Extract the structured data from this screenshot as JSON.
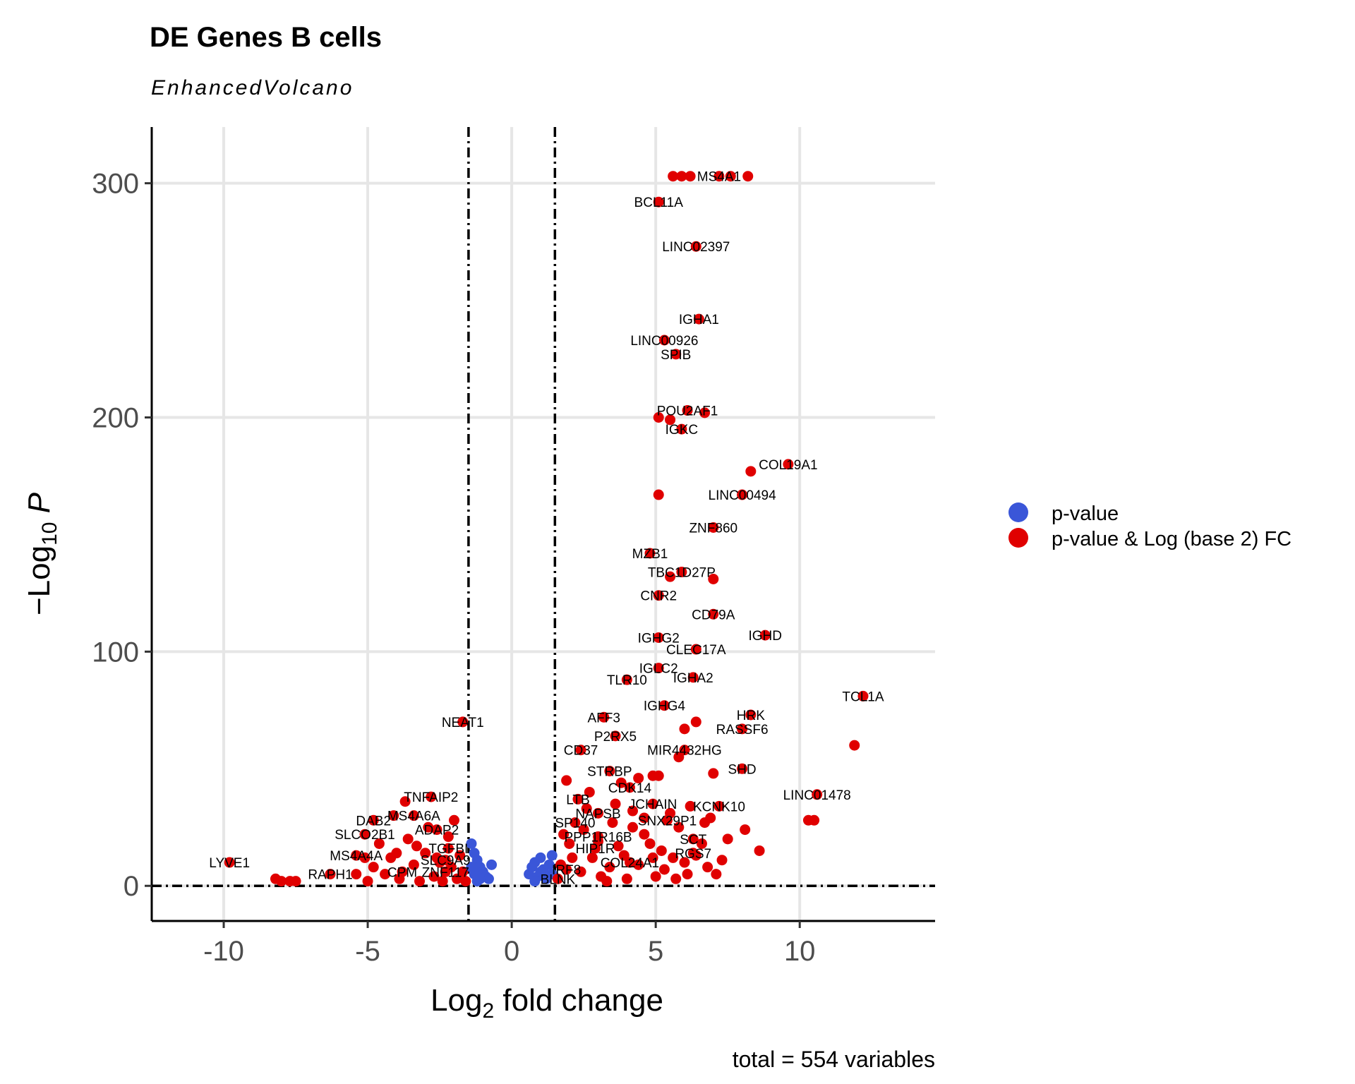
{
  "title": "DE Genes B cells",
  "subtitle": "EnhancedVolcano",
  "caption": "total = 554 variables",
  "colors": {
    "ns": "#3a56d8",
    "sig": "#e00000",
    "grid": "#e6e6e6"
  },
  "legend": [
    {
      "label": "p-value",
      "color": "#3a56d8"
    },
    {
      "label": "p-value & Log (base 2) FC",
      "color": "#e00000"
    }
  ],
  "chart_data": {
    "type": "scatter",
    "title": "DE Genes B cells",
    "subtitle": "EnhancedVolcano",
    "xlabel": "Log2 fold change",
    "ylabel": "-Log10 P",
    "xlim": [
      -12.5,
      14.7
    ],
    "ylim": [
      -15,
      324
    ],
    "xticks": [
      -10,
      -5,
      0,
      5,
      10
    ],
    "xtick_labels": [
      "-10",
      "-5",
      "0",
      "5",
      "10"
    ],
    "yticks": [
      0,
      100,
      200,
      300
    ],
    "ytick_labels": [
      "0",
      "100",
      "200",
      "300"
    ],
    "grid": true,
    "legend_position": "right",
    "fc_cutoff": 1.5,
    "p_cutoff_line": 0,
    "labeled_points": [
      {
        "gene": "MS4A1",
        "x": 7.2,
        "y": 303,
        "group": "sig"
      },
      {
        "gene": "BCL11A",
        "x": 5.1,
        "y": 292,
        "group": "sig"
      },
      {
        "gene": "LINC02397",
        "x": 6.4,
        "y": 273,
        "group": "sig"
      },
      {
        "gene": "IGHA1",
        "x": 6.5,
        "y": 242,
        "group": "sig"
      },
      {
        "gene": "LINC00926",
        "x": 5.3,
        "y": 233,
        "group": "sig"
      },
      {
        "gene": "SPIB",
        "x": 5.7,
        "y": 227,
        "group": "sig"
      },
      {
        "gene": "POU2AF1",
        "x": 6.1,
        "y": 203,
        "group": "sig"
      },
      {
        "gene": "IGKC",
        "x": 5.9,
        "y": 195,
        "group": "sig"
      },
      {
        "gene": "COL19A1",
        "x": 9.6,
        "y": 180,
        "group": "sig"
      },
      {
        "gene": "LINC00494",
        "x": 8.0,
        "y": 167,
        "group": "sig"
      },
      {
        "gene": "ZNF860",
        "x": 7.0,
        "y": 153,
        "group": "sig"
      },
      {
        "gene": "MZB1",
        "x": 4.8,
        "y": 142,
        "group": "sig"
      },
      {
        "gene": "TBC1D27P",
        "x": 5.9,
        "y": 134,
        "group": "sig"
      },
      {
        "gene": "CNR2",
        "x": 5.1,
        "y": 124,
        "group": "sig"
      },
      {
        "gene": "CD79A",
        "x": 7.0,
        "y": 116,
        "group": "sig"
      },
      {
        "gene": "IGHD",
        "x": 8.8,
        "y": 107,
        "group": "sig"
      },
      {
        "gene": "IGHG2",
        "x": 5.1,
        "y": 106,
        "group": "sig"
      },
      {
        "gene": "CLEC17A",
        "x": 6.4,
        "y": 101,
        "group": "sig"
      },
      {
        "gene": "IGLC2",
        "x": 5.1,
        "y": 93,
        "group": "sig"
      },
      {
        "gene": "TLR10",
        "x": 4.0,
        "y": 88,
        "group": "sig"
      },
      {
        "gene": "IGHA2",
        "x": 6.3,
        "y": 89,
        "group": "sig"
      },
      {
        "gene": "TCL1A",
        "x": 12.2,
        "y": 81,
        "group": "sig"
      },
      {
        "gene": "IGHG4",
        "x": 5.3,
        "y": 77,
        "group": "sig"
      },
      {
        "gene": "HRK",
        "x": 8.3,
        "y": 73,
        "group": "sig"
      },
      {
        "gene": "AFF3",
        "x": 3.2,
        "y": 72,
        "group": "sig"
      },
      {
        "gene": "NEAT1",
        "x": -1.7,
        "y": 70,
        "group": "sig"
      },
      {
        "gene": "RASSF6",
        "x": 8.0,
        "y": 67,
        "group": "sig"
      },
      {
        "gene": "P2RX5",
        "x": 3.6,
        "y": 64,
        "group": "sig"
      },
      {
        "gene": "MIR4432HG",
        "x": 6.0,
        "y": 58,
        "group": "sig"
      },
      {
        "gene": "CD37",
        "x": 2.4,
        "y": 58,
        "group": "sig"
      },
      {
        "gene": "SHD",
        "x": 8.0,
        "y": 50,
        "group": "sig"
      },
      {
        "gene": "STRBP",
        "x": 3.4,
        "y": 49,
        "group": "sig"
      },
      {
        "gene": "CDK14",
        "x": 4.1,
        "y": 42,
        "group": "sig"
      },
      {
        "gene": "LINC01478",
        "x": 10.6,
        "y": 39,
        "group": "sig"
      },
      {
        "gene": "TNFAIP2",
        "x": -2.8,
        "y": 38,
        "group": "sig"
      },
      {
        "gene": "LTB",
        "x": 2.3,
        "y": 37,
        "group": "sig"
      },
      {
        "gene": "JCHAIN",
        "x": 4.9,
        "y": 35,
        "group": "sig"
      },
      {
        "gene": "KCNK10",
        "x": 7.2,
        "y": 34,
        "group": "sig"
      },
      {
        "gene": "NAPSB",
        "x": 3.0,
        "y": 31,
        "group": "sig"
      },
      {
        "gene": "MS4A6A",
        "x": -3.4,
        "y": 30,
        "group": "sig"
      },
      {
        "gene": "SNX29P1",
        "x": 5.4,
        "y": 28,
        "group": "sig"
      },
      {
        "gene": "DAB2",
        "x": -4.8,
        "y": 28,
        "group": "sig"
      },
      {
        "gene": "SP140",
        "x": 2.2,
        "y": 27,
        "group": "sig"
      },
      {
        "gene": "ADAP2",
        "x": -2.6,
        "y": 24,
        "group": "sig"
      },
      {
        "gene": "SLCO2B1",
        "x": -5.1,
        "y": 22,
        "group": "sig"
      },
      {
        "gene": "PPP1R16B",
        "x": 3.0,
        "y": 21,
        "group": "sig"
      },
      {
        "gene": "SCT",
        "x": 6.3,
        "y": 20,
        "group": "sig"
      },
      {
        "gene": "HIP1R",
        "x": 2.9,
        "y": 16,
        "group": "sig"
      },
      {
        "gene": "TGFBI",
        "x": -2.2,
        "y": 16,
        "group": "sig"
      },
      {
        "gene": "RGS7",
        "x": 6.3,
        "y": 14,
        "group": "sig"
      },
      {
        "gene": "MS4A4A",
        "x": -5.4,
        "y": 13,
        "group": "sig"
      },
      {
        "gene": "SLC9A9",
        "x": -2.3,
        "y": 11,
        "group": "sig"
      },
      {
        "gene": "LYVE1",
        "x": -9.8,
        "y": 10,
        "group": "sig"
      },
      {
        "gene": "COL24A1",
        "x": 4.1,
        "y": 10,
        "group": "sig"
      },
      {
        "gene": "IRF8",
        "x": 1.9,
        "y": 7,
        "group": "sig"
      },
      {
        "gene": "CPM",
        "x": -3.8,
        "y": 6,
        "group": "sig"
      },
      {
        "gene": "ZNF117",
        "x": -2.3,
        "y": 6,
        "group": "sig"
      },
      {
        "gene": "RAPH1",
        "x": -6.3,
        "y": 5,
        "group": "sig"
      },
      {
        "gene": "BLNK",
        "x": 1.6,
        "y": 3,
        "group": "sig"
      }
    ],
    "other_points": [
      {
        "x": 5.6,
        "y": 303,
        "group": "sig"
      },
      {
        "x": 5.9,
        "y": 303,
        "group": "sig"
      },
      {
        "x": 6.2,
        "y": 303,
        "group": "sig"
      },
      {
        "x": 7.6,
        "y": 303,
        "group": "sig"
      },
      {
        "x": 8.2,
        "y": 303,
        "group": "sig"
      },
      {
        "x": 6.7,
        "y": 202,
        "group": "sig"
      },
      {
        "x": 5.1,
        "y": 200,
        "group": "sig"
      },
      {
        "x": 5.5,
        "y": 199,
        "group": "sig"
      },
      {
        "x": 8.3,
        "y": 177,
        "group": "sig"
      },
      {
        "x": 5.1,
        "y": 167,
        "group": "sig"
      },
      {
        "x": 5.5,
        "y": 132,
        "group": "sig"
      },
      {
        "x": 7.0,
        "y": 131,
        "group": "sig"
      },
      {
        "x": 6.4,
        "y": 70,
        "group": "sig"
      },
      {
        "x": 6.0,
        "y": 67,
        "group": "sig"
      },
      {
        "x": 11.9,
        "y": 60,
        "group": "sig"
      },
      {
        "x": 5.8,
        "y": 55,
        "group": "sig"
      },
      {
        "x": 7.0,
        "y": 48,
        "group": "sig"
      },
      {
        "x": 1.9,
        "y": 45,
        "group": "sig"
      },
      {
        "x": 4.4,
        "y": 46,
        "group": "sig"
      },
      {
        "x": 4.9,
        "y": 47,
        "group": "sig"
      },
      {
        "x": 5.1,
        "y": 47,
        "group": "sig"
      },
      {
        "x": 3.8,
        "y": 44,
        "group": "sig"
      },
      {
        "x": 2.7,
        "y": 40,
        "group": "sig"
      },
      {
        "x": 10.3,
        "y": 28,
        "group": "sig"
      },
      {
        "x": 10.5,
        "y": 28,
        "group": "sig"
      },
      {
        "x": 8.1,
        "y": 24,
        "group": "sig"
      },
      {
        "x": 8.6,
        "y": 15,
        "group": "sig"
      },
      {
        "x": 7.5,
        "y": 20,
        "group": "sig"
      },
      {
        "x": 6.9,
        "y": 29,
        "group": "sig"
      },
      {
        "x": 6.7,
        "y": 27,
        "group": "sig"
      },
      {
        "x": 5.8,
        "y": 25,
        "group": "sig"
      },
      {
        "x": 4.6,
        "y": 29,
        "group": "sig"
      },
      {
        "x": 4.2,
        "y": 32,
        "group": "sig"
      },
      {
        "x": 3.6,
        "y": 35,
        "group": "sig"
      },
      {
        "x": 3.5,
        "y": 27,
        "group": "sig"
      },
      {
        "x": 2.6,
        "y": 33,
        "group": "sig"
      },
      {
        "x": 4.8,
        "y": 18,
        "group": "sig"
      },
      {
        "x": 5.2,
        "y": 15,
        "group": "sig"
      },
      {
        "x": 5.6,
        "y": 12,
        "group": "sig"
      },
      {
        "x": 6.0,
        "y": 10,
        "group": "sig"
      },
      {
        "x": 6.8,
        "y": 8,
        "group": "sig"
      },
      {
        "x": 7.1,
        "y": 5,
        "group": "sig"
      },
      {
        "x": 6.1,
        "y": 5,
        "group": "sig"
      },
      {
        "x": 5.0,
        "y": 4,
        "group": "sig"
      },
      {
        "x": 4.0,
        "y": 3,
        "group": "sig"
      },
      {
        "x": 3.1,
        "y": 4,
        "group": "sig"
      },
      {
        "x": 2.4,
        "y": 6,
        "group": "sig"
      },
      {
        "x": 2.1,
        "y": 12,
        "group": "sig"
      },
      {
        "x": 2.0,
        "y": 18,
        "group": "sig"
      },
      {
        "x": 1.8,
        "y": 22,
        "group": "sig"
      },
      {
        "x": 1.7,
        "y": 9,
        "group": "sig"
      },
      {
        "x": 2.8,
        "y": 12,
        "group": "sig"
      },
      {
        "x": 3.4,
        "y": 8,
        "group": "sig"
      },
      {
        "x": 3.9,
        "y": 13,
        "group": "sig"
      },
      {
        "x": 4.4,
        "y": 9,
        "group": "sig"
      },
      {
        "x": 4.6,
        "y": 22,
        "group": "sig"
      },
      {
        "x": 5.3,
        "y": 7,
        "group": "sig"
      },
      {
        "x": 5.7,
        "y": 3,
        "group": "sig"
      },
      {
        "x": 6.6,
        "y": 18,
        "group": "sig"
      },
      {
        "x": 7.3,
        "y": 11,
        "group": "sig"
      },
      {
        "x": 6.4,
        "y": 13,
        "group": "sig"
      },
      {
        "x": 3.7,
        "y": 17,
        "group": "sig"
      },
      {
        "x": 2.5,
        "y": 24,
        "group": "sig"
      },
      {
        "x": 4.2,
        "y": 25,
        "group": "sig"
      },
      {
        "x": 5.5,
        "y": 31,
        "group": "sig"
      },
      {
        "x": 6.2,
        "y": 34,
        "group": "sig"
      },
      {
        "x": 3.0,
        "y": 19,
        "group": "sig"
      },
      {
        "x": 4.9,
        "y": 12,
        "group": "sig"
      },
      {
        "x": 3.3,
        "y": 2,
        "group": "sig"
      },
      {
        "x": -8.2,
        "y": 3,
        "group": "sig"
      },
      {
        "x": -8.0,
        "y": 2,
        "group": "sig"
      },
      {
        "x": -7.7,
        "y": 2,
        "group": "sig"
      },
      {
        "x": -7.5,
        "y": 2,
        "group": "sig"
      },
      {
        "x": -5.4,
        "y": 5,
        "group": "sig"
      },
      {
        "x": -5.0,
        "y": 2,
        "group": "sig"
      },
      {
        "x": -4.8,
        "y": 8,
        "group": "sig"
      },
      {
        "x": -4.6,
        "y": 18,
        "group": "sig"
      },
      {
        "x": -4.4,
        "y": 5,
        "group": "sig"
      },
      {
        "x": -4.2,
        "y": 12,
        "group": "sig"
      },
      {
        "x": -4.1,
        "y": 30,
        "group": "sig"
      },
      {
        "x": -3.9,
        "y": 3,
        "group": "sig"
      },
      {
        "x": -3.7,
        "y": 36,
        "group": "sig"
      },
      {
        "x": -3.6,
        "y": 20,
        "group": "sig"
      },
      {
        "x": -3.4,
        "y": 9,
        "group": "sig"
      },
      {
        "x": -3.2,
        "y": 2,
        "group": "sig"
      },
      {
        "x": -3.0,
        "y": 14,
        "group": "sig"
      },
      {
        "x": -2.9,
        "y": 25,
        "group": "sig"
      },
      {
        "x": -2.7,
        "y": 4,
        "group": "sig"
      },
      {
        "x": -2.5,
        "y": 10,
        "group": "sig"
      },
      {
        "x": -2.4,
        "y": 2,
        "group": "sig"
      },
      {
        "x": -2.2,
        "y": 21,
        "group": "sig"
      },
      {
        "x": -2.1,
        "y": 8,
        "group": "sig"
      },
      {
        "x": -2.0,
        "y": 28,
        "group": "sig"
      },
      {
        "x": -1.9,
        "y": 3,
        "group": "sig"
      },
      {
        "x": -1.8,
        "y": 13,
        "group": "sig"
      },
      {
        "x": -1.7,
        "y": 6,
        "group": "sig"
      },
      {
        "x": -1.6,
        "y": 2,
        "group": "sig"
      },
      {
        "x": -4.0,
        "y": 14,
        "group": "sig"
      },
      {
        "x": -3.3,
        "y": 17,
        "group": "sig"
      },
      {
        "x": -2.6,
        "y": 12,
        "group": "sig"
      },
      {
        "x": -5.1,
        "y": 12,
        "group": "sig"
      },
      {
        "x": -1.4,
        "y": 18,
        "group": "ns"
      },
      {
        "x": -1.3,
        "y": 14,
        "group": "ns"
      },
      {
        "x": -1.2,
        "y": 11,
        "group": "ns"
      },
      {
        "x": -1.1,
        "y": 8,
        "group": "ns"
      },
      {
        "x": -1.0,
        "y": 6,
        "group": "ns"
      },
      {
        "x": -0.9,
        "y": 4,
        "group": "ns"
      },
      {
        "x": -0.8,
        "y": 3,
        "group": "ns"
      },
      {
        "x": -1.3,
        "y": 5,
        "group": "ns"
      },
      {
        "x": -1.2,
        "y": 2,
        "group": "ns"
      },
      {
        "x": -0.7,
        "y": 9,
        "group": "ns"
      },
      {
        "x": -1.4,
        "y": 8,
        "group": "ns"
      },
      {
        "x": -1.1,
        "y": 3,
        "group": "ns"
      },
      {
        "x": 0.6,
        "y": 5,
        "group": "ns"
      },
      {
        "x": 0.7,
        "y": 8,
        "group": "ns"
      },
      {
        "x": 0.8,
        "y": 10,
        "group": "ns"
      },
      {
        "x": 0.9,
        "y": 4,
        "group": "ns"
      },
      {
        "x": 1.0,
        "y": 12,
        "group": "ns"
      },
      {
        "x": 1.1,
        "y": 7,
        "group": "ns"
      },
      {
        "x": 1.2,
        "y": 3,
        "group": "ns"
      },
      {
        "x": 1.3,
        "y": 9,
        "group": "ns"
      },
      {
        "x": 1.4,
        "y": 5,
        "group": "ns"
      },
      {
        "x": 1.4,
        "y": 13,
        "group": "ns"
      },
      {
        "x": 0.8,
        "y": 2,
        "group": "ns"
      },
      {
        "x": 1.0,
        "y": 6,
        "group": "ns"
      }
    ]
  }
}
